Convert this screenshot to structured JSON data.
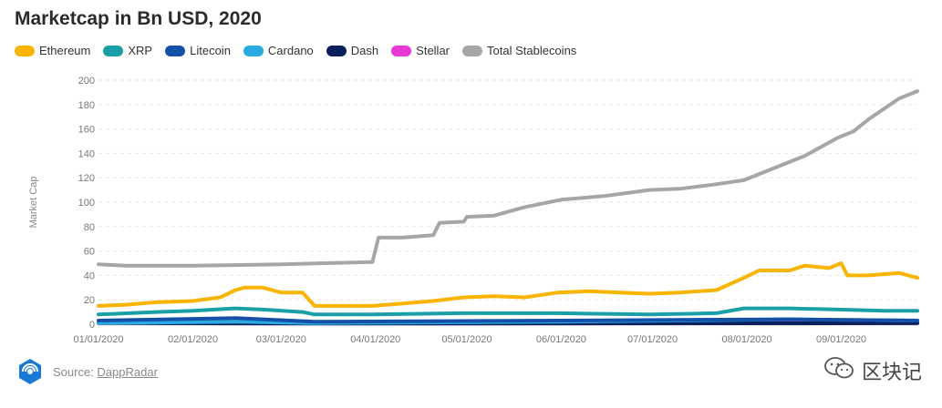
{
  "chart_data": {
    "type": "line",
    "title": "Marketcap in Bn USD, 2020",
    "ylabel": "Market Cap",
    "xlabel": "",
    "ylim": [
      0,
      200
    ],
    "yticks": [
      0,
      20,
      40,
      60,
      80,
      100,
      120,
      140,
      160,
      180,
      200
    ],
    "x_range": [
      "01/01/2020",
      "09/26/2020"
    ],
    "x_tick_labels": [
      "01/01/2020",
      "02/01/2020",
      "03/01/2020",
      "04/01/2020",
      "05/01/2020",
      "06/01/2020",
      "07/01/2020",
      "08/01/2020",
      "09/01/2020"
    ],
    "grid": true,
    "legend_position": "top-left",
    "series": [
      {
        "name": "Ethereum",
        "color": "#F8B400",
        "points": [
          [
            "01/01/2020",
            15
          ],
          [
            "01/10/2020",
            16
          ],
          [
            "01/20/2020",
            18
          ],
          [
            "02/01/2020",
            19
          ],
          [
            "02/10/2020",
            22
          ],
          [
            "02/15/2020",
            28
          ],
          [
            "02/18/2020",
            30
          ],
          [
            "02/24/2020",
            30
          ],
          [
            "03/01/2020",
            26
          ],
          [
            "03/08/2020",
            26
          ],
          [
            "03/12/2020",
            15
          ],
          [
            "03/20/2020",
            15
          ],
          [
            "03/31/2020",
            15
          ],
          [
            "04/10/2020",
            17
          ],
          [
            "04/20/2020",
            19
          ],
          [
            "04/30/2020",
            22
          ],
          [
            "05/10/2020",
            23
          ],
          [
            "05/20/2020",
            22
          ],
          [
            "05/31/2020",
            26
          ],
          [
            "06/10/2020",
            27
          ],
          [
            "06/20/2020",
            26
          ],
          [
            "06/30/2020",
            25
          ],
          [
            "07/10/2020",
            26
          ],
          [
            "07/22/2020",
            28
          ],
          [
            "07/31/2020",
            38
          ],
          [
            "08/05/2020",
            44
          ],
          [
            "08/15/2020",
            44
          ],
          [
            "08/20/2020",
            48
          ],
          [
            "08/28/2020",
            46
          ],
          [
            "09/01/2020",
            50
          ],
          [
            "09/03/2020",
            40
          ],
          [
            "09/10/2020",
            40
          ],
          [
            "09/20/2020",
            42
          ],
          [
            "09/26/2020",
            38
          ]
        ]
      },
      {
        "name": "XRP",
        "color": "#1A9FA6",
        "points": [
          [
            "01/01/2020",
            8
          ],
          [
            "01/20/2020",
            10
          ],
          [
            "02/01/2020",
            11
          ],
          [
            "02/15/2020",
            13
          ],
          [
            "02/24/2020",
            12
          ],
          [
            "03/08/2020",
            10
          ],
          [
            "03/12/2020",
            8
          ],
          [
            "03/31/2020",
            8
          ],
          [
            "04/30/2020",
            9
          ],
          [
            "05/31/2020",
            9
          ],
          [
            "06/30/2020",
            8
          ],
          [
            "07/22/2020",
            9
          ],
          [
            "07/31/2020",
            13
          ],
          [
            "08/15/2020",
            13
          ],
          [
            "08/31/2020",
            12
          ],
          [
            "09/15/2020",
            11
          ],
          [
            "09/26/2020",
            11
          ]
        ]
      },
      {
        "name": "Litecoin",
        "color": "#1450A8",
        "points": [
          [
            "01/01/2020",
            3
          ],
          [
            "02/15/2020",
            5
          ],
          [
            "03/12/2020",
            2
          ],
          [
            "05/31/2020",
            3
          ],
          [
            "08/15/2020",
            4
          ],
          [
            "09/26/2020",
            3
          ]
        ]
      },
      {
        "name": "Cardano",
        "color": "#29ABE2",
        "points": [
          [
            "01/01/2020",
            1
          ],
          [
            "02/15/2020",
            2
          ],
          [
            "03/12/2020",
            1
          ],
          [
            "05/31/2020",
            2
          ],
          [
            "08/15/2020",
            4
          ],
          [
            "09/26/2020",
            3
          ]
        ]
      },
      {
        "name": "Dash",
        "color": "#0B1F5C",
        "points": [
          [
            "01/01/2020",
            1
          ],
          [
            "03/12/2020",
            0.5
          ],
          [
            "09/26/2020",
            0.8
          ]
        ]
      },
      {
        "name": "Stellar",
        "color": "#E838D8",
        "points": [
          [
            "01/01/2020",
            1
          ],
          [
            "02/15/2020",
            2
          ],
          [
            "03/12/2020",
            1
          ],
          [
            "05/31/2020",
            1.5
          ],
          [
            "08/15/2020",
            2.5
          ],
          [
            "09/26/2020",
            2
          ]
        ]
      },
      {
        "name": "Total Stablecoins",
        "color": "#A6A6A6",
        "points": [
          [
            "01/01/2020",
            49
          ],
          [
            "01/10/2020",
            48
          ],
          [
            "02/01/2020",
            48
          ],
          [
            "03/01/2020",
            49
          ],
          [
            "03/15/2020",
            50
          ],
          [
            "03/31/2020",
            51
          ],
          [
            "04/02/2020",
            71
          ],
          [
            "04/10/2020",
            71
          ],
          [
            "04/20/2020",
            73
          ],
          [
            "04/22/2020",
            83
          ],
          [
            "04/30/2020",
            84
          ],
          [
            "05/01/2020",
            88
          ],
          [
            "05/10/2020",
            89
          ],
          [
            "05/20/2020",
            96
          ],
          [
            "06/01/2020",
            102
          ],
          [
            "06/15/2020",
            105
          ],
          [
            "06/30/2020",
            110
          ],
          [
            "07/10/2020",
            111
          ],
          [
            "07/20/2020",
            114
          ],
          [
            "07/31/2020",
            118
          ],
          [
            "08/10/2020",
            128
          ],
          [
            "08/20/2020",
            138
          ],
          [
            "08/31/2020",
            153
          ],
          [
            "09/05/2020",
            158
          ],
          [
            "09/10/2020",
            168
          ],
          [
            "09/20/2020",
            185
          ],
          [
            "09/26/2020",
            191
          ]
        ]
      }
    ]
  },
  "footer": {
    "source_prefix": "Source: ",
    "source_name": "DappRadar",
    "logo_icon": "dappradar-logo-icon",
    "logo_color": "#1A78D6"
  },
  "watermark": {
    "text": "区块记",
    "icon": "wechat-icon"
  }
}
